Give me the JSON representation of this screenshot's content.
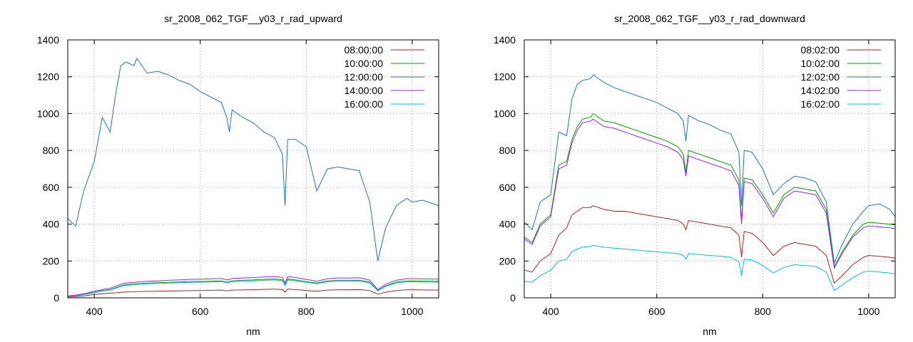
{
  "chart_data": [
    {
      "type": "line",
      "title": "sr_2008_062_TGF__y03_r_rad_upward",
      "xlabel": "nm",
      "ylabel": "",
      "xlim": [
        350,
        1050
      ],
      "ylim": [
        0,
        1400
      ],
      "xticks": [
        400,
        600,
        800,
        1000
      ],
      "yticks": [
        0,
        200,
        400,
        600,
        800,
        1000,
        1200,
        1400
      ],
      "grid": true,
      "legend_position": "top-right",
      "x": [
        350,
        365,
        380,
        400,
        415,
        430,
        440,
        450,
        460,
        475,
        480,
        500,
        520,
        540,
        560,
        580,
        600,
        620,
        640,
        650,
        655,
        660,
        680,
        700,
        720,
        740,
        755,
        760,
        765,
        780,
        800,
        820,
        840,
        860,
        880,
        900,
        920,
        935,
        950,
        970,
        990,
        1000,
        1020,
        1040,
        1050
      ],
      "series": [
        {
          "name": "08:00:00",
          "color": "#b22222",
          "values": [
            5,
            7,
            10,
            18,
            22,
            25,
            27,
            30,
            32,
            33,
            34,
            35,
            36,
            37,
            38,
            39,
            40,
            41,
            42,
            38,
            40,
            42,
            43,
            44,
            46,
            47,
            45,
            30,
            47,
            45,
            40,
            36,
            42,
            44,
            44,
            45,
            40,
            20,
            30,
            40,
            44,
            44,
            43,
            42,
            42
          ]
        },
        {
          "name": "10:00:00",
          "color": "#00a000",
          "values": [
            8,
            12,
            18,
            30,
            40,
            45,
            55,
            65,
            72,
            75,
            77,
            80,
            82,
            84,
            86,
            88,
            89,
            90,
            92,
            85,
            88,
            92,
            95,
            97,
            100,
            102,
            98,
            70,
            102,
            97,
            88,
            80,
            92,
            95,
            95,
            96,
            85,
            40,
            65,
            85,
            92,
            92,
            91,
            90,
            90
          ]
        },
        {
          "name": "12:00:00",
          "color": "#1f77b4",
          "values": [
            430,
            390,
            580,
            740,
            980,
            900,
            1100,
            1260,
            1280,
            1260,
            1300,
            1220,
            1230,
            1210,
            1180,
            1160,
            1120,
            1090,
            1060,
            980,
            900,
            1020,
            980,
            950,
            900,
            870,
            780,
            500,
            860,
            860,
            820,
            580,
            700,
            710,
            700,
            690,
            520,
            200,
            380,
            500,
            540,
            520,
            530,
            510,
            500
          ]
        },
        {
          "name": "14:00:00",
          "color": "#a020f0",
          "values": [
            10,
            15,
            22,
            35,
            45,
            52,
            63,
            73,
            80,
            84,
            86,
            90,
            92,
            95,
            97,
            100,
            101,
            103,
            105,
            97,
            100,
            105,
            108,
            110,
            113,
            116,
            111,
            80,
            116,
            110,
            100,
            90,
            104,
            108,
            108,
            109,
            96,
            45,
            74,
            96,
            104,
            104,
            103,
            102,
            102
          ]
        },
        {
          "name": "16:00:00",
          "color": "#00c0e0",
          "values": [
            7,
            11,
            17,
            28,
            37,
            42,
            52,
            62,
            68,
            71,
            73,
            76,
            78,
            80,
            82,
            84,
            85,
            86,
            88,
            81,
            84,
            88,
            90,
            92,
            95,
            97,
            93,
            66,
            97,
            92,
            84,
            76,
            87,
            90,
            90,
            91,
            81,
            38,
            62,
            81,
            87,
            87,
            86,
            85,
            85
          ]
        }
      ]
    },
    {
      "type": "line",
      "title": "sr_2008_062_TGF__y03_r_rad_downward",
      "xlabel": "nm",
      "ylabel": "",
      "xlim": [
        350,
        1050
      ],
      "ylim": [
        0,
        1400
      ],
      "xticks": [
        400,
        600,
        800,
        1000
      ],
      "yticks": [
        0,
        200,
        400,
        600,
        800,
        1000,
        1200,
        1400
      ],
      "grid": true,
      "legend_position": "top-right",
      "x": [
        350,
        365,
        380,
        400,
        415,
        430,
        440,
        450,
        460,
        475,
        480,
        500,
        520,
        540,
        560,
        580,
        600,
        620,
        640,
        650,
        655,
        660,
        680,
        700,
        720,
        740,
        755,
        760,
        765,
        780,
        800,
        820,
        840,
        860,
        880,
        900,
        920,
        935,
        950,
        970,
        990,
        1000,
        1020,
        1040,
        1050
      ],
      "series": [
        {
          "name": "08:02:00",
          "color": "#b22222",
          "values": [
            150,
            140,
            200,
            240,
            340,
            380,
            450,
            470,
            490,
            490,
            500,
            480,
            470,
            470,
            460,
            450,
            440,
            430,
            420,
            400,
            370,
            420,
            410,
            400,
            390,
            380,
            340,
            220,
            360,
            350,
            300,
            230,
            280,
            300,
            290,
            280,
            230,
            80,
            120,
            180,
            220,
            230,
            225,
            220,
            215
          ]
        },
        {
          "name": "10:02:00",
          "color": "#00a000",
          "values": [
            330,
            300,
            400,
            450,
            720,
            740,
            860,
            930,
            970,
            980,
            1000,
            960,
            950,
            930,
            910,
            890,
            870,
            850,
            820,
            780,
            680,
            800,
            780,
            760,
            740,
            720,
            640,
            420,
            650,
            640,
            560,
            460,
            560,
            600,
            590,
            580,
            480,
            170,
            250,
            340,
            400,
            410,
            405,
            400,
            395
          ]
        },
        {
          "name": "12:02:00",
          "color": "#1f77b4",
          "values": [
            410,
            370,
            520,
            560,
            900,
            880,
            1080,
            1160,
            1180,
            1190,
            1210,
            1170,
            1140,
            1120,
            1100,
            1080,
            1060,
            1030,
            1000,
            960,
            850,
            990,
            960,
            940,
            910,
            890,
            790,
            500,
            800,
            790,
            700,
            560,
            620,
            660,
            650,
            630,
            520,
            190,
            290,
            400,
            470,
            500,
            510,
            480,
            440
          ]
        },
        {
          "name": "14:02:00",
          "color": "#a020f0",
          "values": [
            320,
            290,
            390,
            440,
            700,
            720,
            840,
            910,
            950,
            960,
            970,
            930,
            920,
            900,
            880,
            860,
            840,
            820,
            790,
            750,
            660,
            770,
            750,
            730,
            710,
            690,
            610,
            400,
            630,
            620,
            540,
            440,
            540,
            580,
            570,
            560,
            460,
            160,
            240,
            330,
            380,
            390,
            385,
            380,
            375
          ]
        },
        {
          "name": "16:02:00",
          "color": "#00c0e0",
          "values": [
            90,
            85,
            120,
            150,
            200,
            210,
            250,
            265,
            275,
            280,
            285,
            275,
            270,
            265,
            260,
            255,
            250,
            245,
            240,
            230,
            210,
            240,
            235,
            230,
            225,
            220,
            195,
            120,
            210,
            205,
            175,
            135,
            165,
            180,
            175,
            170,
            140,
            40,
            70,
            110,
            140,
            145,
            140,
            135,
            130
          ]
        }
      ]
    }
  ]
}
